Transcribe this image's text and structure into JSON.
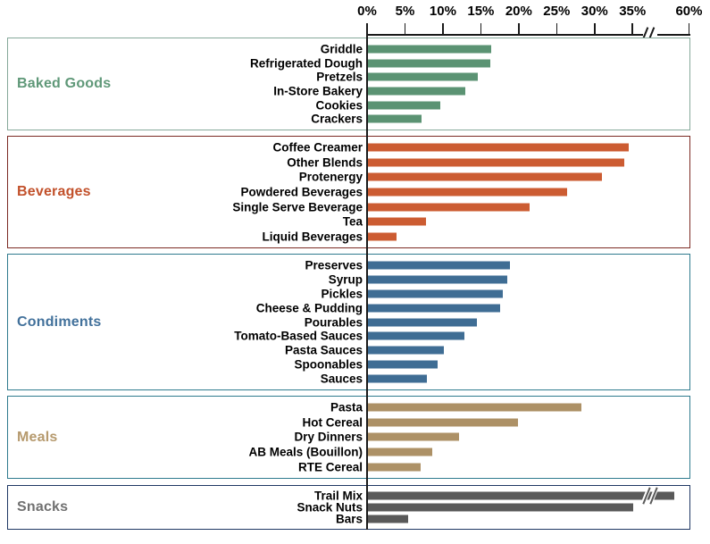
{
  "chart_data": {
    "type": "bar",
    "orientation": "horizontal",
    "title": "",
    "x_axis": {
      "unit": "%",
      "tick_labels": [
        "0%",
        "5%",
        "10%",
        "15%",
        "20%",
        "25%",
        "30%",
        "35%",
        "60%"
      ],
      "tick_values": [
        0,
        5,
        10,
        15,
        20,
        25,
        30,
        35,
        60
      ],
      "range_shown": [
        0,
        60
      ],
      "axis_break": {
        "between": [
          35,
          60
        ]
      },
      "grid": "off",
      "position": "top"
    },
    "legend": "none",
    "groups": [
      {
        "name": "Baked Goods",
        "bar_color": "#5b9373",
        "title_color": "#5f9878",
        "border_color": "#86a99a",
        "items": [
          {
            "label": "Griddle",
            "value": 16.2
          },
          {
            "label": "Refrigerated Dough",
            "value": 16.1
          },
          {
            "label": "Pretzels",
            "value": 14.5
          },
          {
            "label": "In-Store Bakery",
            "value": 12.8
          },
          {
            "label": "Cookies",
            "value": 9.5
          },
          {
            "label": "Crackers",
            "value": 7.1
          }
        ]
      },
      {
        "name": "Beverages",
        "bar_color": "#cc5c32",
        "title_color": "#c2512b",
        "border_color": "#7c2b24",
        "items": [
          {
            "label": "Coffee Creamer",
            "value": 34.4
          },
          {
            "label": "Other Blends",
            "value": 33.8
          },
          {
            "label": "Protenergy",
            "value": 30.8
          },
          {
            "label": "Powdered Beverages",
            "value": 26.2
          },
          {
            "label": "Single Serve Beverage",
            "value": 21.3
          },
          {
            "label": "Tea",
            "value": 7.6
          },
          {
            "label": "Liquid Beverages",
            "value": 3.8
          }
        ]
      },
      {
        "name": "Condiments",
        "bar_color": "#3f6d94",
        "title_color": "#42719b",
        "border_color": "#2f7b8e",
        "items": [
          {
            "label": "Preserves",
            "value": 18.7
          },
          {
            "label": "Syrup",
            "value": 18.4
          },
          {
            "label": "Pickles",
            "value": 17.8
          },
          {
            "label": "Cheese & Pudding",
            "value": 17.4
          },
          {
            "label": "Pourables",
            "value": 14.4
          },
          {
            "label": "Tomato-Based Sauces",
            "value": 12.7
          },
          {
            "label": "Pasta Sauces",
            "value": 10.0
          },
          {
            "label": "Spoonables",
            "value": 9.2
          },
          {
            "label": "Sauces",
            "value": 7.8
          }
        ]
      },
      {
        "name": "Meals",
        "bar_color": "#ad9166",
        "title_color": "#b69a6e",
        "border_color": "#2f7b8e",
        "items": [
          {
            "label": "Pasta",
            "value": 28.1
          },
          {
            "label": "Hot Cereal",
            "value": 19.8
          },
          {
            "label": "Dry Dinners",
            "value": 12.0
          },
          {
            "label": "AB Meals (Bouillon)",
            "value": 8.5
          },
          {
            "label": "RTE Cereal",
            "value": 6.9
          }
        ]
      },
      {
        "name": "Snacks",
        "bar_color": "#595959",
        "title_color": "#707070",
        "border_color": "#1f3864",
        "items": [
          {
            "label": "Trail Mix",
            "value": 53,
            "truncated": true
          },
          {
            "label": "Snack Nuts",
            "value": 35.0
          },
          {
            "label": "Bars",
            "value": 5.3
          }
        ]
      }
    ]
  }
}
